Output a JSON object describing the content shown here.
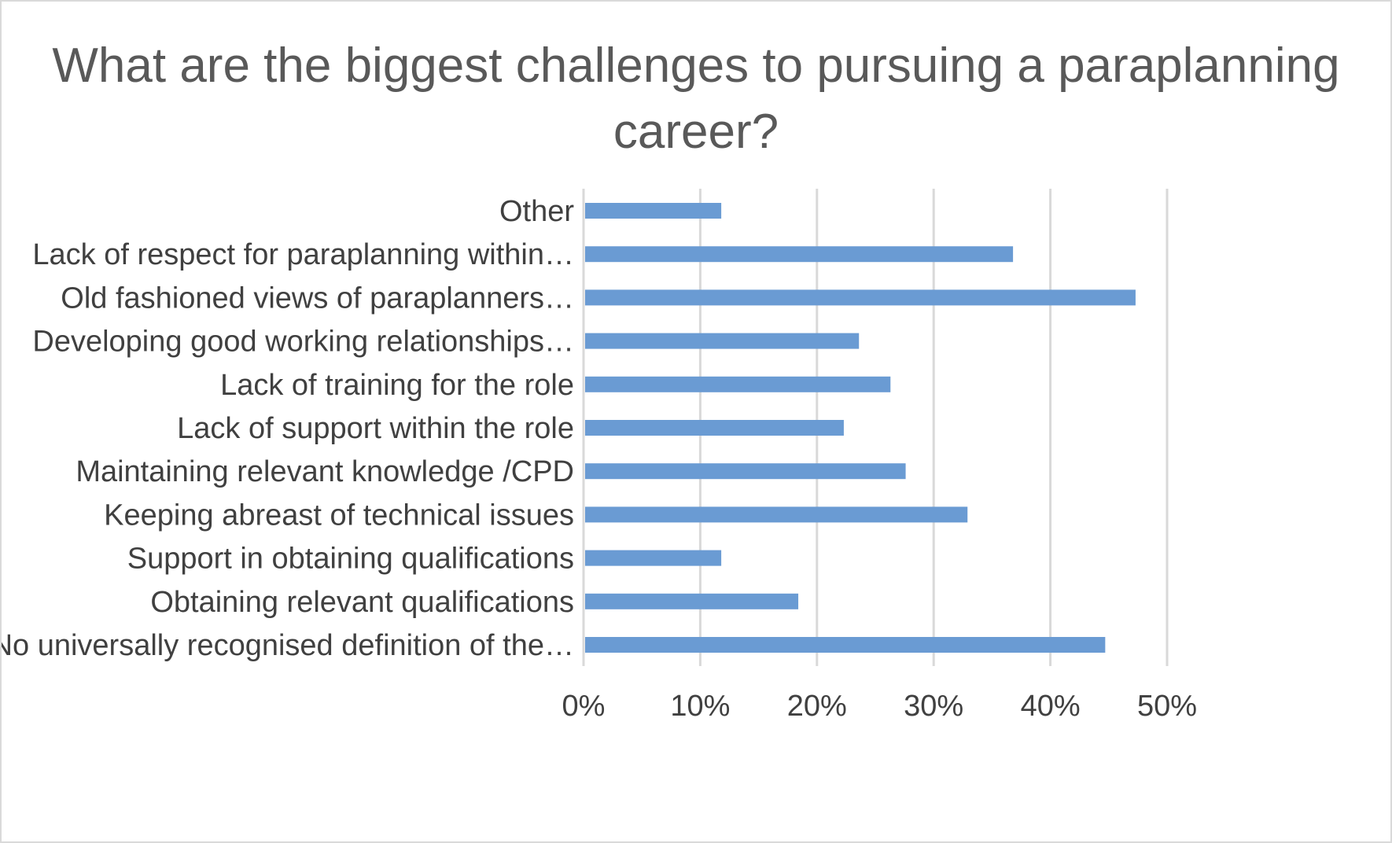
{
  "chart_data": {
    "type": "bar",
    "orientation": "horizontal",
    "title": "What are the biggest challenges to pursuing a paraplanning career?",
    "categories": [
      "Other",
      "Lack of respect for paraplanning within…",
      "Old fashioned views of paraplanners…",
      "Developing good working relationships…",
      "Lack of training for the role",
      "Lack of support within the role",
      "Maintaining relevant knowledge /CPD",
      "Keeping abreast of technical issues",
      "Support in obtaining qualifications",
      "Obtaining relevant qualifications",
      "No universally recognised definition of the…"
    ],
    "values": [
      11.8,
      36.8,
      47.3,
      23.6,
      26.3,
      22.3,
      27.6,
      32.9,
      11.8,
      18.4,
      44.7
    ],
    "x_ticks": [
      "0%",
      "10%",
      "20%",
      "30%",
      "40%",
      "50%"
    ],
    "xlim": [
      0,
      50
    ],
    "value_unit": "%",
    "grid": true,
    "legend": "none",
    "colors": {
      "bar": "#6a9bd3",
      "grid": "#d9d9d9",
      "text": "#404040",
      "title": "#595959"
    }
  }
}
